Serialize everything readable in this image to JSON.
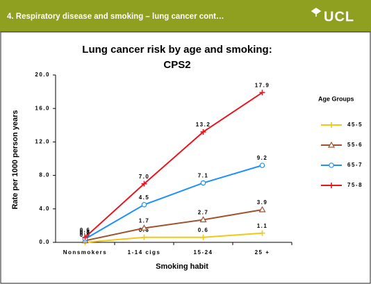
{
  "header": {
    "title": "4. Respiratory disease and smoking – lung cancer cont…",
    "logo": "UCL"
  },
  "chart_data": {
    "type": "line",
    "title": "Lung cancer risk by age and smoking:",
    "subtitle": "CPS2",
    "x_label": "Smoking habit",
    "y_label": "Rate per 1000 person years",
    "legend_title": "Age Groups",
    "legend": "right",
    "categories": [
      "Nonsmokers",
      "1-14 cigs",
      "15-24",
      "25 +"
    ],
    "ylim": [
      0,
      20
    ],
    "yticks": [
      {
        "value": 0,
        "label": "0.0"
      },
      {
        "value": 4,
        "label": "4.0"
      },
      {
        "value": 8,
        "label": "8.0"
      },
      {
        "value": 12,
        "label": "12.0"
      },
      {
        "value": 16,
        "label": "16.0"
      },
      {
        "value": 20,
        "label": "20.0"
      }
    ],
    "series": [
      {
        "name": "45-5",
        "color": "#f2c811",
        "marker": "plus",
        "values": [
          0.0,
          0.6,
          0.6,
          1.1
        ],
        "value_labels": [
          "0.0",
          "0.6",
          "0.6",
          "1.1"
        ]
      },
      {
        "name": "55-6",
        "color": "#a0522d",
        "marker": "triangle",
        "values": [
          0.2,
          1.7,
          2.7,
          3.9
        ],
        "value_labels": [
          "0.2",
          "1.7",
          "2.7",
          "3.9"
        ]
      },
      {
        "name": "65-7",
        "color": "#1e8fff",
        "marker": "circle",
        "values": [
          0.4,
          4.5,
          7.1,
          9.2
        ],
        "value_labels": [
          "0.4",
          "4.5",
          "7.1",
          "9.2"
        ]
      },
      {
        "name": "75-8",
        "color": "#e8141e",
        "marker": "plus",
        "values": [
          0.6,
          7.0,
          13.2,
          17.9
        ],
        "value_labels": [
          "0.6",
          "7.0",
          "13.2",
          "17.9"
        ]
      }
    ]
  }
}
